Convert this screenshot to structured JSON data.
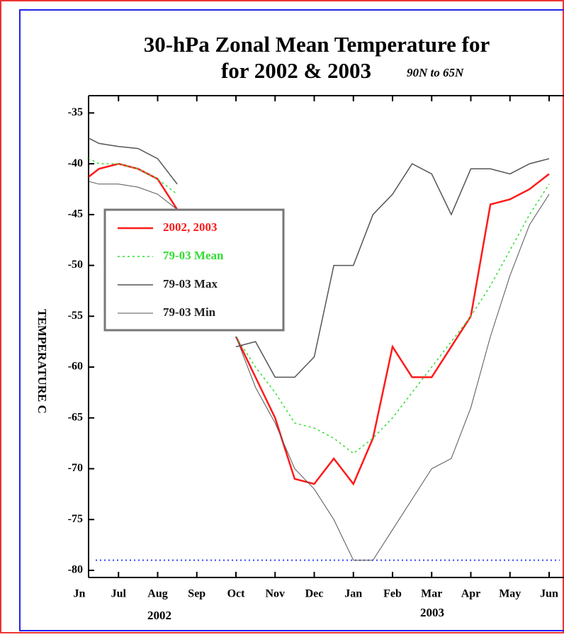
{
  "chart_data": {
    "type": "line",
    "title": "30-hPa Zonal Mean Temperature for",
    "subtitle": "for 2002 & 2003",
    "region": "90N to 65N",
    "y_label": "TEMPERATURE C",
    "years": [
      "2002",
      "2003"
    ],
    "categories": [
      "Jn",
      null,
      "Jul",
      null,
      "Aug",
      null,
      "Sep",
      null,
      "Oct",
      null,
      "Nov",
      null,
      "Dec",
      null,
      "Jan",
      null,
      "Feb",
      null,
      "Mar",
      null,
      "Apr",
      null,
      "May",
      null,
      "Jun"
    ],
    "ylim": [
      -80.7,
      -33.3
    ],
    "yticks": [
      -35,
      -40,
      -45,
      -50,
      -55,
      -60,
      -65,
      -70,
      -75,
      -80
    ],
    "reference_value": -79,
    "reference_color": "#3344ff",
    "legend": "upper left",
    "series": [
      {
        "name": "2002, 2003",
        "color": "#ff1a1a",
        "values": [
          -42,
          -40.5,
          -40,
          -40.5,
          -41.5,
          -44.5,
          null,
          null,
          -57,
          -61,
          -65,
          -71,
          -71.5,
          -69,
          -71.5,
          -67,
          -58,
          -61,
          -61,
          -58,
          -55,
          -44,
          -43.5,
          -42.5,
          -41
        ]
      },
      {
        "name": "79-03 Mean",
        "color": "#33dd33",
        "values": [
          -39,
          -40,
          -40,
          -40.5,
          -41.5,
          -43,
          null,
          null,
          -57,
          -60,
          -62.5,
          -65.5,
          -66,
          -67,
          -68.5,
          -67,
          -65,
          -62.5,
          -60,
          -57.5,
          -55,
          -52,
          -48.5,
          -45,
          -42
        ]
      },
      {
        "name": "79-03 Max",
        "color": "#555555",
        "values": [
          -37,
          -38,
          -38.3,
          -38.5,
          -39.5,
          -42,
          null,
          null,
          -58,
          -57.5,
          -61,
          -61,
          -59,
          -50,
          -50,
          -45,
          -43,
          -40,
          -41,
          -45,
          -40.5,
          -40.5,
          -41,
          -40,
          -39.5
        ]
      },
      {
        "name": "79-03 Min",
        "color": "#555555",
        "values": [
          -41.5,
          -42,
          -42,
          -42.3,
          -43,
          -44.5,
          null,
          null,
          -57,
          -62,
          -65.5,
          -70,
          -72,
          -75,
          -79,
          -79,
          -76,
          -73,
          -70,
          -69,
          -64,
          -57,
          -51,
          -46,
          -43
        ]
      }
    ]
  }
}
